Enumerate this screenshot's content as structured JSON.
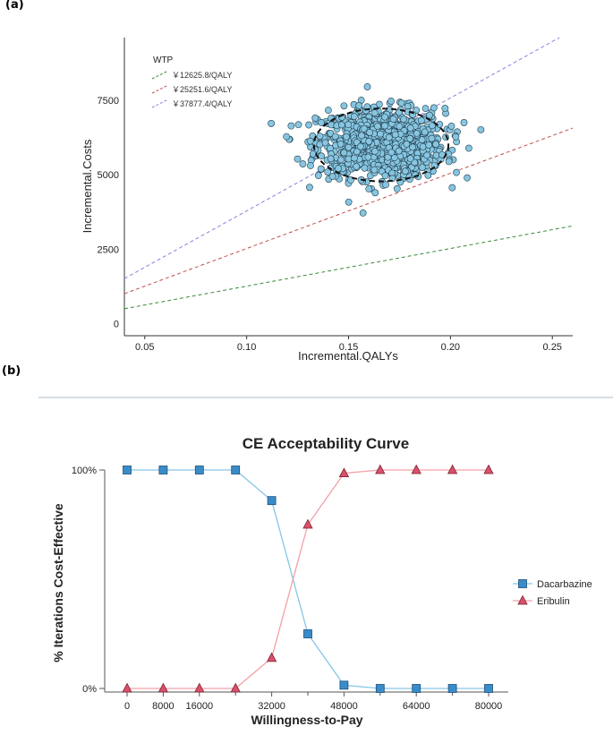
{
  "panels": {
    "a_label": "(a)",
    "b_label": "(b)"
  },
  "chart_data": [
    {
      "type": "scatter",
      "title": "",
      "xlabel": "Incremental.QALYs",
      "ylabel": "Incremental.Costs",
      "xlim": [
        0.04,
        0.26
      ],
      "ylim": [
        -400,
        9600
      ],
      "xticks": [
        0.05,
        0.1,
        0.15,
        0.2,
        0.25
      ],
      "xtick_labels": [
        "0.05",
        "0.10",
        "0.15",
        "0.20",
        "0.25"
      ],
      "yticks": [
        0,
        2500,
        5000,
        7500
      ],
      "ytick_labels": [
        "0",
        "2500",
        "5000",
        "7500"
      ],
      "legend_title": "WTP",
      "wtp_lines": [
        {
          "label": "￥12625.8/QALY",
          "slope": 12625.8,
          "color": "#3b8a3b"
        },
        {
          "label": "￥25251.6/QALY",
          "slope": 25251.6,
          "color": "#c0504d"
        },
        {
          "label": "￥37877.4/QALY",
          "slope": 37877.4,
          "color": "#8c7fe0"
        }
      ],
      "cloud": {
        "center_x": 0.166,
        "center_y": 6050,
        "sd_x": 0.0155,
        "sd_y": 580,
        "n": 1000,
        "color": "#87c5e0"
      },
      "ellipse": {
        "center_x": 0.166,
        "center_y": 6000,
        "rx": 0.033,
        "ry": 1220
      }
    },
    {
      "type": "line",
      "title": "CE Acceptability Curve",
      "xlabel": "Willingness-to-Pay",
      "ylabel": "% Iterations Cost-Effective",
      "xlim": [
        -8000,
        85000
      ],
      "ylim": [
        0,
        100
      ],
      "xticks": [
        0,
        8000,
        16000,
        32000,
        48000,
        64000,
        80000
      ],
      "xtick_labels": [
        "0",
        "8000",
        "16000",
        "32000",
        "48000",
        "64000",
        "80000"
      ],
      "minor_xticks": [
        24000,
        40000,
        56000,
        72000
      ],
      "ytick_labels": [
        "100%",
        "0%"
      ],
      "x": [
        0,
        8000,
        16000,
        24000,
        32000,
        40000,
        48000,
        56000,
        64000,
        72000,
        80000
      ],
      "series": [
        {
          "name": "Dacarbazine",
          "marker": "square",
          "line_color": "#87c5e8",
          "marker_color": "#3a8cc8",
          "values": [
            100,
            100,
            100,
            100,
            86,
            25,
            1.5,
            0,
            0,
            0,
            0
          ]
        },
        {
          "name": "Eribulin",
          "marker": "triangle",
          "line_color": "#f4a0a8",
          "marker_color": "#d9506a",
          "values": [
            0,
            0,
            0,
            0,
            14,
            75,
            98.5,
            100,
            100,
            100,
            100
          ]
        }
      ]
    }
  ]
}
